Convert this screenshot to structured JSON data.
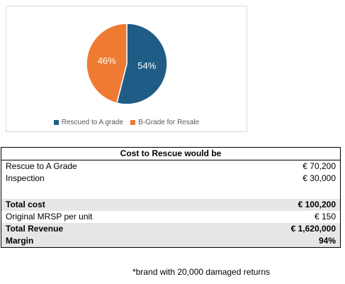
{
  "chart_data": {
    "type": "pie",
    "slices": [
      {
        "label": "Rescued to A grade",
        "value": 54,
        "display": "54%",
        "color": "#1f5d86"
      },
      {
        "label": "B-Grade for Resale",
        "value": 46,
        "display": "46%",
        "color": "#ef7a31"
      }
    ],
    "legend_position": "bottom"
  },
  "table": {
    "header": "Cost to Rescue would be",
    "rows": [
      {
        "label": "Rescue to A Grade",
        "value": "€ 70,200"
      },
      {
        "label": "Inspection",
        "value": "€ 30,000"
      },
      {
        "label": "",
        "value": ""
      },
      {
        "label": "Total cost",
        "value": "€ 100,200"
      },
      {
        "label": "Original MRSP per unit",
        "value": "€ 150"
      },
      {
        "label": "Total Revenue",
        "value": "€ 1,620,000"
      },
      {
        "label": "Margin",
        "value": "94%"
      }
    ]
  },
  "footnote": "*brand with 20,000 damaged returns"
}
